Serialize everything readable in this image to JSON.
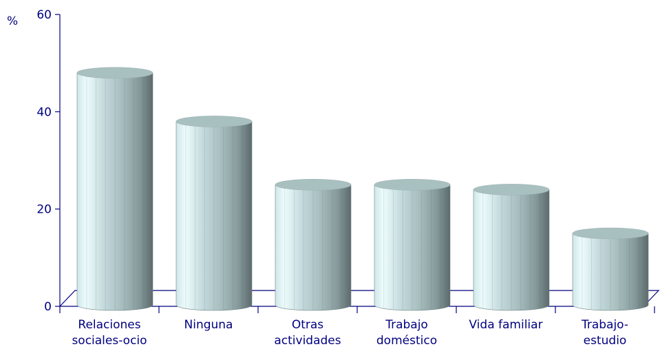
{
  "chart_data": {
    "type": "bar",
    "style": "3d-cylinder",
    "title": "",
    "xlabel": "",
    "ylabel": "%",
    "ylim": [
      0,
      60
    ],
    "yticks": [
      0,
      20,
      40,
      60
    ],
    "grid": false,
    "legend": "none",
    "categories": [
      [
        "Relaciones",
        "sociales-ocio"
      ],
      [
        "Ninguna"
      ],
      [
        "Otras",
        "actividades"
      ],
      [
        "Trabajo",
        "doméstico"
      ],
      [
        "Vida familiar"
      ],
      [
        "Trabajo-",
        "estudio"
      ]
    ],
    "values": [
      48,
      38,
      25,
      25,
      24,
      15
    ],
    "colors": {
      "axis": "#000080",
      "bar_light": "#e8fbfd",
      "bar_mid": "#b7cfd1",
      "bar_dark": "#5f6f70",
      "top": "#a9c0c0"
    }
  }
}
